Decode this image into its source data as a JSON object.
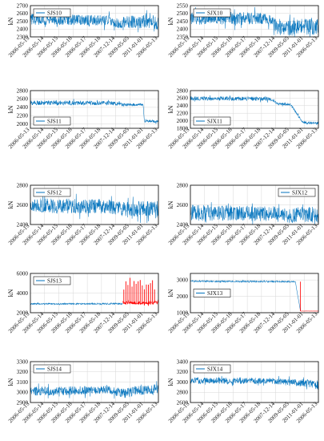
{
  "chart_data": [
    {
      "type": "line",
      "legend": "SJS10",
      "ylabel": "kN",
      "ylim": [
        2300,
        2700
      ],
      "yticks": [
        2300,
        2400,
        2500,
        2600,
        2700
      ],
      "xticks": [
        "2006-05-13",
        "2006-05-14",
        "2006-05-15",
        "2006-05-16",
        "2006-05-17",
        "2006-05-18",
        "2007-12-14",
        "2009-05-05",
        "2011-01-01",
        "2006-05-13"
      ],
      "legend_position": "top-left",
      "grid": true,
      "series": [
        {
          "color": "#0072bd",
          "values": [
            {
              "x": 0,
              "mid": 2525,
              "spread": 70
            },
            {
              "x": 0.62,
              "mid": 2510,
              "spread": 66
            },
            {
              "x": 0.68,
              "mid": 2470,
              "spread": 64
            },
            {
              "x": 0.77,
              "mid": 2495,
              "spread": 82
            },
            {
              "x": 0.88,
              "mid": 2490,
              "spread": 85
            },
            {
              "x": 1,
              "mid": 2480,
              "spread": 88
            }
          ]
        }
      ]
    },
    {
      "type": "line",
      "legend": "SJX10",
      "ylabel": "kN",
      "ylim": [
        2350,
        2550
      ],
      "yticks": [
        2350,
        2400,
        2450,
        2500,
        2550
      ],
      "xticks": [
        "2006-05-13",
        "2006-05-14",
        "2006-05-15",
        "2006-05-16",
        "2006-05-17",
        "2006-05-18",
        "2007-12-14",
        "2009-05-05",
        "2011-01-01",
        "2006-05-13"
      ],
      "legend_position": "top-left",
      "grid": true,
      "series": [
        {
          "color": "#0072bd",
          "values": [
            {
              "x": 0,
              "mid": 2470,
              "spread": 42
            },
            {
              "x": 0.62,
              "mid": 2468,
              "spread": 38
            },
            {
              "x": 0.68,
              "mid": 2410,
              "spread": 46
            },
            {
              "x": 0.77,
              "mid": 2405,
              "spread": 50
            },
            {
              "x": 0.88,
              "mid": 2420,
              "spread": 54
            },
            {
              "x": 1,
              "mid": 2415,
              "spread": 58
            }
          ]
        }
      ]
    },
    {
      "type": "line",
      "legend": "SJS11",
      "ylabel": "kN",
      "ylim": [
        1900,
        2800
      ],
      "yticks": [
        2000,
        2200,
        2400,
        2600,
        2800
      ],
      "xticks": [
        "2006-05-13",
        "2006-05-14",
        "2006-05-15",
        "2006-05-16",
        "2006-05-17",
        "2006-05-18",
        "2007-12-14",
        "2009-05-05",
        "2011-01-01",
        "2006-05-13"
      ],
      "legend_position": "bottom-left",
      "grid": true,
      "series": [
        {
          "color": "#0072bd",
          "values": [
            {
              "x": 0,
              "mid": 2510,
              "spread": 55
            },
            {
              "x": 0.62,
              "mid": 2500,
              "spread": 50
            },
            {
              "x": 0.74,
              "mid": 2460,
              "spread": 34
            },
            {
              "x": 0.88,
              "mid": 2470,
              "spread": 30
            },
            {
              "x": 0.89,
              "mid": 2080,
              "spread": 34
            },
            {
              "x": 1,
              "mid": 2070,
              "spread": 36
            }
          ]
        }
      ]
    },
    {
      "type": "line",
      "legend": "SJX11",
      "ylabel": "kN",
      "ylim": [
        1800,
        2800
      ],
      "yticks": [
        1800,
        2000,
        2200,
        2400,
        2600,
        2800
      ],
      "xticks": [
        "2006-05-13",
        "2006-05-14",
        "2006-05-15",
        "2006-05-16",
        "2006-05-17",
        "2006-05-18",
        "2007-12-14",
        "2009-05-05",
        "2011-01-01",
        "2006-05-13"
      ],
      "legend_position": "bottom-left",
      "grid": true,
      "series": [
        {
          "color": "#0072bd",
          "values": [
            {
              "x": 0,
              "mid": 2590,
              "spread": 56
            },
            {
              "x": 0.62,
              "mid": 2585,
              "spread": 54
            },
            {
              "x": 0.69,
              "mid": 2450,
              "spread": 36
            },
            {
              "x": 0.78,
              "mid": 2440,
              "spread": 34
            },
            {
              "x": 0.88,
              "mid": 1950,
              "spread": 36
            },
            {
              "x": 1,
              "mid": 1940,
              "spread": 40
            }
          ]
        }
      ]
    },
    {
      "type": "line",
      "legend": "SJS12",
      "ylabel": "kN",
      "ylim": [
        2400,
        2800
      ],
      "yticks": [
        2400,
        2600,
        2800
      ],
      "xticks": [
        "2006-05-13",
        "2006-05-14",
        "2006-05-15",
        "2006-05-16",
        "2006-05-17",
        "2006-05-18",
        "2007-12-14",
        "2009-05-05",
        "2011-01-01",
        "2006-05-13"
      ],
      "legend_position": "top-left",
      "grid": true,
      "series": [
        {
          "color": "#0072bd",
          "values": [
            {
              "x": 0,
              "mid": 2590,
              "spread": 78
            },
            {
              "x": 0.62,
              "mid": 2585,
              "spread": 74
            },
            {
              "x": 0.74,
              "mid": 2555,
              "spread": 75
            },
            {
              "x": 0.88,
              "mid": 2560,
              "spread": 82
            },
            {
              "x": 1,
              "mid": 2545,
              "spread": 86
            }
          ]
        }
      ]
    },
    {
      "type": "line",
      "legend": "SJX12",
      "ylabel": "kN",
      "ylim": [
        2400,
        2800
      ],
      "yticks": [
        2400,
        2600,
        2800
      ],
      "xticks": [
        "2006-05-13",
        "2006-05-14",
        "2006-05-15",
        "2006-05-16",
        "2006-05-17",
        "2006-05-18",
        "2007-12-14",
        "2009-05-05",
        "2011-01-01",
        "2006-05-13"
      ],
      "legend_position": "top-right",
      "grid": true,
      "series": [
        {
          "color": "#0072bd",
          "values": [
            {
              "x": 0,
              "mid": 2520,
              "spread": 82
            },
            {
              "x": 0.62,
              "mid": 2510,
              "spread": 76
            },
            {
              "x": 0.74,
              "mid": 2490,
              "spread": 74
            },
            {
              "x": 0.88,
              "mid": 2500,
              "spread": 84
            },
            {
              "x": 1,
              "mid": 2490,
              "spread": 92
            }
          ]
        }
      ]
    },
    {
      "type": "line",
      "legend": "SJS13",
      "ylabel": "kN",
      "ylim": [
        2000,
        6000
      ],
      "yticks": [
        2000,
        4000,
        6000
      ],
      "xticks": [
        "2006-05-13",
        "2006-05-14",
        "2006-05-15",
        "2006-05-16",
        "2006-05-17",
        "2006-05-18",
        "2007-12-14",
        "2009-05-05",
        "2011-01-01",
        "2006-05-13"
      ],
      "legend_position": "top-left",
      "grid": true,
      "series": [
        {
          "color": "#0072bd",
          "values": [
            {
              "x": 0,
              "mid": 2900,
              "spread": 70
            },
            {
              "x": 0.72,
              "mid": 2920,
              "spread": 80
            }
          ]
        },
        {
          "color": "#ff0000",
          "values": [
            {
              "x": 0.72,
              "mid": 3000,
              "spread": 160
            },
            {
              "x": 1,
              "mid": 3000,
              "spread": 180
            }
          ]
        }
      ]
    },
    {
      "type": "line",
      "legend": "SJX13",
      "ylabel": "kN",
      "ylim": [
        1000,
        3400
      ],
      "yticks": [
        1000,
        2000,
        3000
      ],
      "xticks": [
        "2006-05-13",
        "2006-05-14",
        "2006-05-15",
        "2006-05-16",
        "2006-05-17",
        "2006-05-18",
        "2007-12-14",
        "2009-05-05",
        "2011-01-01",
        "2006-05-13"
      ],
      "legend_position": "middle-left",
      "grid": true,
      "series": [
        {
          "color": "#0072bd",
          "values": [
            {
              "x": 0,
              "mid": 2920,
              "spread": 50
            },
            {
              "x": 0.82,
              "mid": 2895,
              "spread": 40
            },
            {
              "x": 0.86,
              "mid": 1100,
              "spread": 4
            }
          ]
        },
        {
          "color": "#ff0000",
          "values": [
            {
              "x": 0.86,
              "mid": 1100,
              "spread": 4
            },
            {
              "x": 1,
              "mid": 1100,
              "spread": 4
            }
          ]
        }
      ]
    },
    {
      "type": "line",
      "legend": "SJS14",
      "ylabel": "kN",
      "ylim": [
        2900,
        3300
      ],
      "yticks": [
        2900,
        3000,
        3100,
        3200,
        3300
      ],
      "xticks": [
        "2006-05-13",
        "2006-05-14",
        "2006-05-15",
        "2006-05-16",
        "2006-05-17",
        "2006-05-18",
        "2007-12-14",
        "2009-05-05",
        "2011-01-01",
        "2006-05-13"
      ],
      "legend_position": "top-left",
      "grid": true,
      "series": [
        {
          "color": "#0072bd",
          "values": [
            {
              "x": 0,
              "mid": 3010,
              "spread": 44
            },
            {
              "x": 0.62,
              "mid": 3020,
              "spread": 42
            },
            {
              "x": 0.74,
              "mid": 2990,
              "spread": 48
            },
            {
              "x": 0.88,
              "mid": 3030,
              "spread": 52
            },
            {
              "x": 1,
              "mid": 3020,
              "spread": 56
            }
          ]
        }
      ]
    },
    {
      "type": "line",
      "legend": "SJX14",
      "ylabel": "kN",
      "ylim": [
        2600,
        3400
      ],
      "yticks": [
        2600,
        2800,
        3000,
        3200,
        3400
      ],
      "xticks": [
        "2006-05-13",
        "2006-05-14",
        "2006-05-15",
        "2006-05-16",
        "2006-05-17",
        "2006-05-18",
        "2007-12-14",
        "2009-05-05",
        "2011-01-01",
        "2006-05-13"
      ],
      "legend_position": "top-left",
      "grid": true,
      "series": [
        {
          "color": "#0072bd",
          "values": [
            {
              "x": 0,
              "mid": 3030,
              "spread": 62
            },
            {
              "x": 0.62,
              "mid": 3025,
              "spread": 58
            },
            {
              "x": 0.75,
              "mid": 2990,
              "spread": 64
            },
            {
              "x": 0.88,
              "mid": 2985,
              "spread": 72
            },
            {
              "x": 1,
              "mid": 2940,
              "spread": 92
            }
          ]
        }
      ]
    }
  ]
}
